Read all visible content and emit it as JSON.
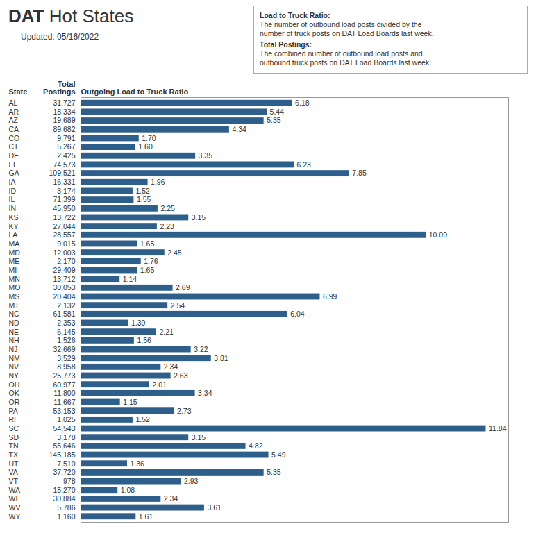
{
  "chart_data": {
    "type": "bar",
    "orientation": "horizontal",
    "title": "DAT Hot States",
    "subtitle": "Updated: 05/16/2022",
    "ylabel": "State",
    "xlabel": "Outgoing Load to Truck Ratio",
    "categories": [
      "AL",
      "AR",
      "AZ",
      "CA",
      "CO",
      "CT",
      "DE",
      "FL",
      "GA",
      "IA",
      "ID",
      "IL",
      "IN",
      "KS",
      "KY",
      "LA",
      "MA",
      "MD",
      "ME",
      "MI",
      "MN",
      "MO",
      "MS",
      "MT",
      "NC",
      "ND",
      "NE",
      "NH",
      "NJ",
      "NM",
      "NV",
      "NY",
      "OH",
      "OK",
      "OR",
      "PA",
      "RI",
      "SC",
      "SD",
      "TN",
      "TX",
      "UT",
      "VA",
      "VT",
      "WA",
      "WI",
      "WV",
      "WY"
    ],
    "values": [
      6.18,
      5.44,
      5.35,
      4.34,
      1.7,
      1.6,
      3.35,
      6.23,
      7.85,
      1.96,
      1.52,
      1.55,
      2.25,
      3.15,
      2.23,
      10.09,
      1.65,
      2.45,
      1.76,
      1.65,
      1.14,
      2.69,
      6.99,
      2.54,
      6.04,
      1.39,
      2.21,
      1.56,
      3.22,
      3.81,
      2.34,
      2.63,
      2.01,
      3.34,
      1.15,
      2.73,
      1.52,
      11.84,
      3.15,
      4.82,
      5.49,
      1.36,
      5.35,
      2.93,
      1.08,
      2.34,
      3.61,
      1.61
    ],
    "value_labels": [
      "6.18",
      "5.44",
      "5.35",
      "4.34",
      "1.70",
      "1.60",
      "3.35",
      "6.23",
      "7.85",
      "1.96",
      "1.52",
      "1.55",
      "2.25",
      "3.15",
      "2.23",
      "10.09",
      "1.65",
      "2.45",
      "1.76",
      "1.65",
      "1.14",
      "2.69",
      "6.99",
      "2.54",
      "6.04",
      "1.39",
      "2.21",
      "1.56",
      "3.22",
      "3.81",
      "2.34",
      "2.63",
      "2.01",
      "3.34",
      "1.15",
      "2.73",
      "1.52",
      "11.84",
      "3.15",
      "4.82",
      "5.49",
      "1.36",
      "5.35",
      "2.93",
      "1.08",
      "2.34",
      "3.61",
      "1.61"
    ],
    "color": "#2E5F8A",
    "xlim": [
      0,
      12.5
    ],
    "data_labels": true,
    "tick_labels": "y",
    "grid": false,
    "columns": [
      {
        "name": "Total Postings",
        "values": [
          31727,
          18334,
          19689,
          89682,
          9791,
          5267,
          2425,
          74573,
          109521,
          16331,
          3174,
          71399,
          45950,
          13722,
          27044,
          28557,
          9015,
          12003,
          2170,
          29409,
          13712,
          30053,
          20404,
          2132,
          61581,
          2353,
          6145,
          1526,
          32669,
          3529,
          8958,
          25773,
          60977,
          11800,
          11667,
          53153,
          1025,
          54543,
          3178,
          55646,
          145185,
          7510,
          37720,
          978,
          15270,
          30884,
          5786,
          1160
        ],
        "value_labels": [
          "31,727",
          "18,334",
          "19,689",
          "89,682",
          "9,791",
          "5,267",
          "2,425",
          "74,573",
          "109,521",
          "16,331",
          "3,174",
          "71,399",
          "45,950",
          "13,722",
          "27,044",
          "28,557",
          "9,015",
          "12,003",
          "2,170",
          "29,409",
          "13,712",
          "30,053",
          "20,404",
          "2,132",
          "61,581",
          "2,353",
          "6,145",
          "1,526",
          "32,669",
          "3,529",
          "8,958",
          "25,773",
          "60,977",
          "11,800",
          "11,667",
          "53,153",
          "1,025",
          "54,543",
          "3,178",
          "55,646",
          "145,185",
          "7,510",
          "37,720",
          "978",
          "15,270",
          "30,884",
          "5,786",
          "1,160"
        ]
      }
    ],
    "annotations": [
      {
        "title": "Load to Truck Ratio:",
        "text": "The number of outbound load posts divided by the\nnumber of truck posts on DAT Load Boards last week."
      },
      {
        "title": "Total Postings:",
        "text": "The combined number of outbound load posts and\noutbound truck posts on DAT Load Boards last week."
      }
    ]
  }
}
